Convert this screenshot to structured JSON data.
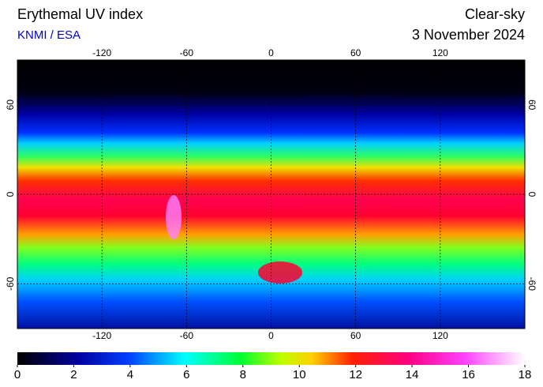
{
  "title": "Erythemal UV index",
  "source": "KNMI / ESA",
  "condition": "Clear-sky",
  "date": "3 November 2024",
  "map": {
    "lonlim": [
      -180,
      180
    ],
    "latlim": [
      -90,
      90
    ],
    "lonticks": [
      -120,
      -60,
      0,
      60,
      120
    ],
    "latticks": [
      60,
      0,
      -60
    ]
  },
  "colorbar": {
    "lim": [
      0,
      18
    ],
    "ticks": [
      0,
      2,
      4,
      6,
      8,
      10,
      12,
      14,
      16,
      18
    ]
  }
}
